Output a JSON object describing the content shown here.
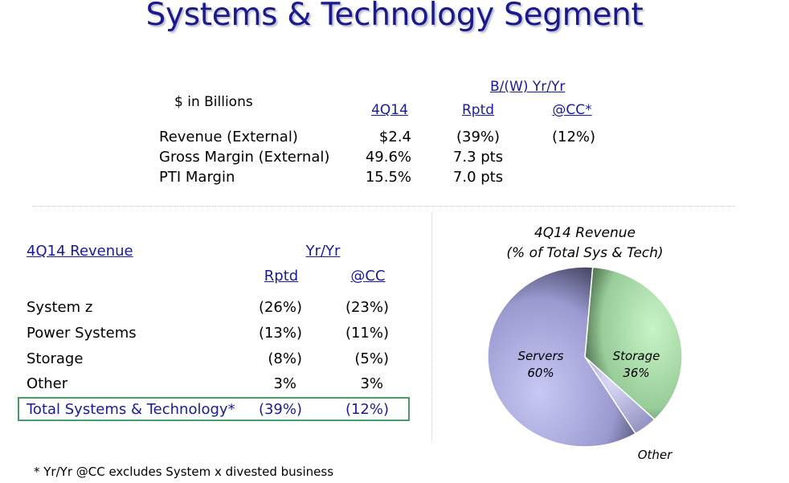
{
  "title": "Systems & Technology Segment",
  "summary": {
    "unit_label": "$ in Billions",
    "bw_header": "B/(W) Yr/Yr",
    "col_headers": [
      "4Q14",
      "Rptd",
      "@CC*"
    ],
    "rows": [
      {
        "label": "Revenue (External)",
        "q": "$2.4",
        "rptd": "(39%)",
        "cc": "(12%)"
      },
      {
        "label": "Gross Margin (External)",
        "q": "49.6%",
        "rptd": "7.3 pts",
        "cc": ""
      },
      {
        "label": "PTI Margin",
        "q": "15.5%",
        "rptd": "7.0 pts",
        "cc": ""
      }
    ]
  },
  "revenue_table": {
    "title": "4Q14 Revenue",
    "yr_header": "Yr/Yr",
    "col_headers": [
      "Rptd",
      "@CC"
    ],
    "rows": [
      {
        "label": "System z",
        "rptd": "(26%)",
        "cc": "(23%)"
      },
      {
        "label": "Power Systems",
        "rptd": "(13%)",
        "cc": "(11%)"
      },
      {
        "label": "Storage",
        "rptd": "(8%)",
        "cc": "(5%)"
      },
      {
        "label": "Other",
        "rptd": "3%",
        "cc": "3%"
      }
    ],
    "total": {
      "label": "Total Systems & Technology*",
      "rptd": "(39%)",
      "cc": "(12%)"
    }
  },
  "pie": {
    "title_line1": "4Q14 Revenue",
    "title_line2": "(% of Total Sys & Tech)",
    "slices": [
      {
        "name": "Servers",
        "pct_label": "60%",
        "value": 60,
        "color": "#a8a8d8"
      },
      {
        "name": "Storage",
        "pct_label": "36%",
        "value": 36,
        "color": "#a8dca8"
      },
      {
        "name": "Other",
        "pct_label": "",
        "value": 4,
        "color": "#c0c0e8"
      }
    ]
  },
  "footnote": "* Yr/Yr @CC excludes System x divested business"
}
